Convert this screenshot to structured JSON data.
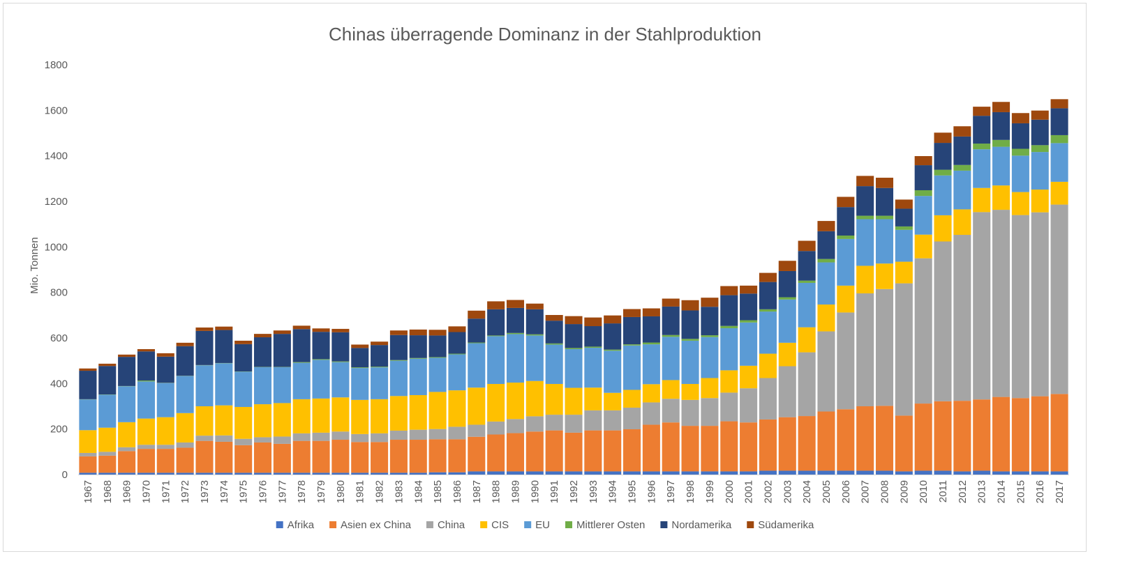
{
  "chart_data": {
    "type": "bar",
    "stacked": true,
    "title": "Chinas überragende Dominanz in der Stahlproduktion",
    "xlabel": "",
    "ylabel": "Mio. Tonnen",
    "ylim": [
      0,
      1800
    ],
    "yticks": [
      0,
      200,
      400,
      600,
      800,
      1000,
      1200,
      1400,
      1600,
      1800
    ],
    "grid": false,
    "legend_position": "bottom",
    "categories": [
      "1967",
      "1968",
      "1969",
      "1970",
      "1971",
      "1972",
      "1973",
      "1974",
      "1975",
      "1976",
      "1977",
      "1978",
      "1979",
      "1980",
      "1981",
      "1982",
      "1983",
      "1984",
      "1985",
      "1986",
      "1987",
      "1988",
      "1989",
      "1990",
      "1991",
      "1992",
      "1993",
      "1994",
      "1995",
      "1996",
      "1997",
      "1998",
      "1999",
      "2000",
      "2001",
      "2002",
      "2003",
      "2004",
      "2005",
      "2006",
      "2007",
      "2008",
      "2009",
      "2010",
      "2011",
      "2012",
      "2013",
      "2014",
      "2015",
      "2016",
      "2017"
    ],
    "series": [
      {
        "name": "Afrika",
        "color": "#4472c4",
        "values": [
          8,
          8,
          8,
          8,
          8,
          8,
          8,
          8,
          8,
          8,
          8,
          8,
          8,
          8,
          8,
          8,
          8,
          8,
          10,
          10,
          14,
          14,
          14,
          14,
          14,
          14,
          14,
          14,
          14,
          14,
          14,
          14,
          14,
          14,
          14,
          17,
          17,
          17,
          17,
          17,
          17,
          17,
          14,
          17,
          17,
          14,
          17,
          14,
          14,
          14,
          14
        ]
      },
      {
        "name": "Asien ex China",
        "color": "#ed7d31",
        "values": [
          72,
          75,
          95,
          105,
          105,
          110,
          140,
          136,
          121,
          133,
          127,
          140,
          140,
          145,
          135,
          135,
          145,
          145,
          145,
          145,
          152,
          162,
          168,
          175,
          180,
          170,
          180,
          180,
          185,
          205,
          215,
          200,
          200,
          220,
          215,
          225,
          235,
          240,
          260,
          270,
          283,
          285,
          245,
          295,
          305,
          310,
          313,
          327,
          322,
          330,
          340
        ]
      },
      {
        "name": "China",
        "color": "#a5a5a5",
        "values": [
          15,
          17,
          17,
          18,
          18,
          23,
          23,
          28,
          28,
          23,
          32,
          33,
          36,
          36,
          35,
          38,
          40,
          44,
          45,
          55,
          53,
          57,
          62,
          67,
          69,
          79,
          88,
          88,
          95,
          98,
          104,
          114,
          122,
          126,
          150,
          182,
          224,
          280,
          352,
          425,
          496,
          513,
          581,
          638,
          702,
          729,
          823,
          822,
          804,
          808,
          832
        ]
      },
      {
        "name": "CIS",
        "color": "#ffc000",
        "values": [
          100,
          106,
          110,
          115,
          121,
          129,
          129,
          132,
          140,
          145,
          147,
          150,
          150,
          150,
          150,
          150,
          152,
          152,
          163,
          160,
          163,
          165,
          160,
          155,
          135,
          118,
          100,
          77,
          78,
          80,
          82,
          70,
          88,
          98,
          99,
          107,
          103,
          110,
          118,
          118,
          121,
          112,
          95,
          104,
          115,
          112,
          106,
          107,
          101,
          100,
          100
        ]
      },
      {
        "name": "EU",
        "color": "#5b9bd5",
        "values": [
          135,
          145,
          158,
          163,
          150,
          163,
          180,
          185,
          155,
          163,
          158,
          160,
          170,
          155,
          140,
          140,
          155,
          160,
          150,
          158,
          195,
          210,
          213,
          200,
          173,
          170,
          175,
          185,
          195,
          175,
          190,
          190,
          180,
          185,
          190,
          185,
          190,
          195,
          185,
          205,
          205,
          195,
          140,
          170,
          175,
          170,
          170,
          170,
          160,
          165,
          170
        ]
      },
      {
        "name": "Mittlerer Osten",
        "color": "#70ad47",
        "values": [
          1,
          1,
          1,
          4,
          1,
          1,
          1,
          1,
          1,
          1,
          1,
          3,
          3,
          3,
          3,
          3,
          3,
          3,
          3,
          3,
          3,
          3,
          5,
          5,
          5,
          5,
          5,
          5,
          5,
          8,
          8,
          8,
          8,
          10,
          10,
          10,
          10,
          10,
          15,
          15,
          15,
          15,
          15,
          25,
          25,
          25,
          25,
          30,
          30,
          30,
          35
        ]
      },
      {
        "name": "Nordamerika",
        "color": "#264478",
        "values": [
          125,
          125,
          128,
          128,
          115,
          130,
          150,
          145,
          120,
          130,
          145,
          145,
          120,
          128,
          85,
          95,
          110,
          100,
          95,
          95,
          105,
          115,
          110,
          110,
          100,
          105,
          90,
          115,
          120,
          115,
          125,
          125,
          125,
          135,
          117,
          120,
          115,
          130,
          122,
          125,
          130,
          122,
          78,
          110,
          118,
          125,
          122,
          122,
          112,
          112,
          118
        ]
      },
      {
        "name": "Südamerika",
        "color": "#9e480e",
        "values": [
          10,
          10,
          10,
          10,
          15,
          15,
          15,
          15,
          15,
          15,
          15,
          15,
          15,
          15,
          15,
          15,
          20,
          25,
          25,
          25,
          35,
          35,
          35,
          25,
          25,
          35,
          38,
          35,
          35,
          35,
          35,
          45,
          40,
          40,
          35,
          40,
          45,
          45,
          45,
          45,
          45,
          45,
          40,
          40,
          45,
          45,
          40,
          45,
          45,
          40,
          40
        ]
      }
    ]
  }
}
